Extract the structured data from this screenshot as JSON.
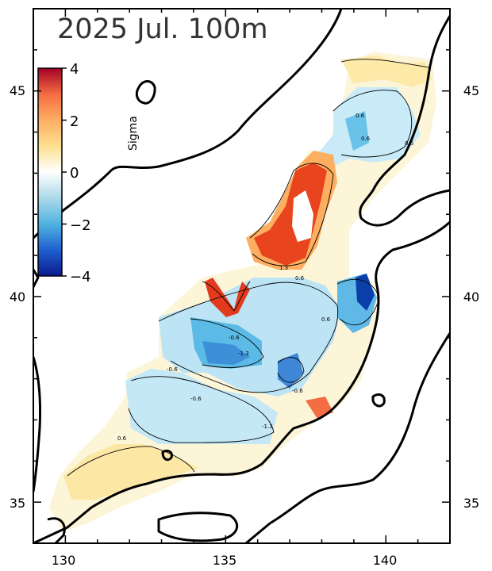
{
  "title": "2025 Jul. 100m",
  "colorbar": {
    "title": "Sigma",
    "tick_labels": [
      "4",
      "2",
      "0",
      "−2",
      "−4"
    ],
    "ticks": [
      4,
      2,
      0,
      -2,
      -4
    ],
    "range": [
      -4,
      4
    ]
  },
  "x_axis": {
    "tick_labels": [
      "130",
      "135",
      "140"
    ],
    "ticks": [
      130,
      135,
      140
    ],
    "range": [
      129,
      142
    ]
  },
  "y_axis": {
    "tick_labels": [
      "35",
      "40",
      "45"
    ],
    "ticks": [
      35,
      40,
      45
    ],
    "range": [
      34,
      47
    ]
  },
  "contour_labels": [
    "0.6",
    "0.6",
    "0.6",
    "-0.6",
    "-1.3",
    "1.3",
    "0.6",
    "-0.6",
    "-1.3",
    "0.6",
    "-0.6",
    "0.6",
    "-0.6"
  ],
  "colors": {
    "warm_strong": "#d7301f",
    "warm_mid": "#fdae61",
    "warm_light": "#fee090",
    "neutral": "#ffffff",
    "cool_light": "#c6e7f5",
    "cool_mid": "#67c1e6",
    "cool_strong": "#2166ac",
    "cool_deep": "#0b3ea8"
  }
}
